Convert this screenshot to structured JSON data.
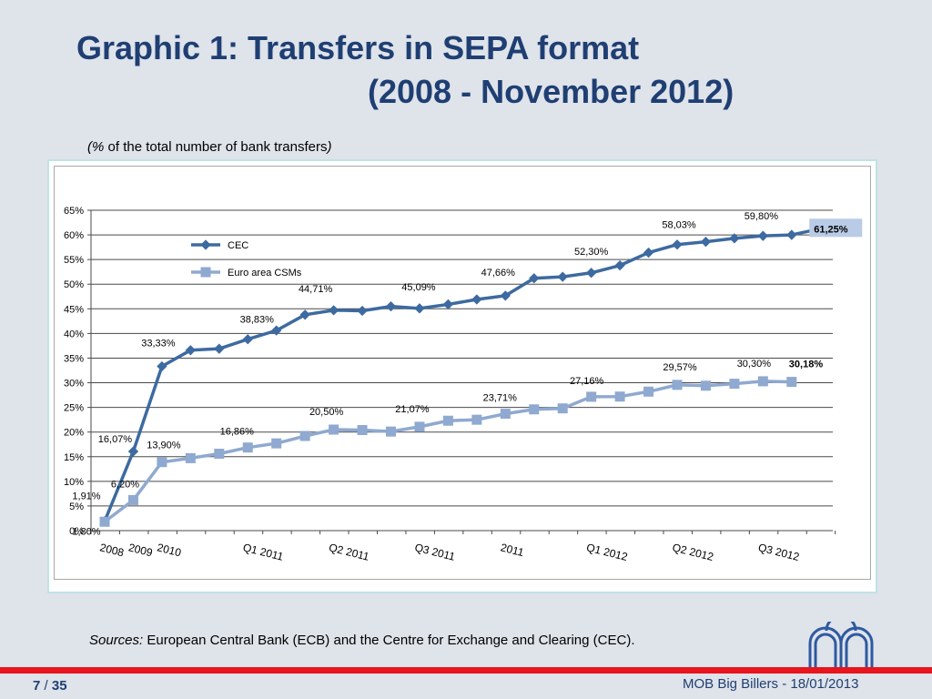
{
  "header": {
    "title_line1": "Graphic 1: Transfers in SEPA format",
    "title_line2": "(2008 - November 2012)",
    "subtitle_pre": "(%",
    "subtitle_mid": " of the total number of bank transfers",
    "subtitle_post": ")"
  },
  "footer": {
    "sources_label": "Sources:",
    "sources_text": " European Central Bank (ECB) and the Centre for Exchange and Clearing (CEC).",
    "page_current": "7",
    "page_sep": " / ",
    "page_total": "35",
    "right_text": "MOB Big Billers - 18/01/2013"
  },
  "colors": {
    "title": "#1f3f73",
    "cec_series": "#3d6aa0",
    "csm_series": "#8fa9d0",
    "red_bar": "#e8141e"
  },
  "chart_data": {
    "type": "line",
    "ylim": [
      0,
      65
    ],
    "yticks": [
      "0%",
      "5%",
      "10%",
      "15%",
      "20%",
      "25%",
      "30%",
      "35%",
      "40%",
      "45%",
      "50%",
      "55%",
      "60%",
      "65%"
    ],
    "grid": true,
    "legend_position": "top-left",
    "x_tick_labels": [
      {
        "index": 0,
        "label": "2008"
      },
      {
        "index": 1,
        "label": "2009"
      },
      {
        "index": 2,
        "label": "2010"
      },
      {
        "index": 5,
        "label": "Q1 2011"
      },
      {
        "index": 8,
        "label": "Q2 2011"
      },
      {
        "index": 11,
        "label": "Q3 2011"
      },
      {
        "index": 14,
        "label": "2011"
      },
      {
        "index": 17,
        "label": "Q1 2012"
      },
      {
        "index": 20,
        "label": "Q2 2012"
      },
      {
        "index": 23,
        "label": "Q3 2012"
      }
    ],
    "series": [
      {
        "name": "CEC",
        "values": [
          1.91,
          16.07,
          33.33,
          36.6,
          36.9,
          38.83,
          40.6,
          43.8,
          44.71,
          44.6,
          45.5,
          45.09,
          45.9,
          46.9,
          47.66,
          51.2,
          51.5,
          52.3,
          53.8,
          56.4,
          58.03,
          58.6,
          59.3,
          59.8,
          60.0,
          61.25
        ],
        "labels": [
          {
            "index": 0,
            "text": "1,91%"
          },
          {
            "index": 1,
            "text": "16,07%"
          },
          {
            "index": 2,
            "text": "33,33%"
          },
          {
            "index": 5,
            "text": "38,83%"
          },
          {
            "index": 8,
            "text": "44,71%"
          },
          {
            "index": 11,
            "text": "45,09%"
          },
          {
            "index": 14,
            "text": "47,66%"
          },
          {
            "index": 17,
            "text": "52,30%"
          },
          {
            "index": 20,
            "text": "58,03%"
          },
          {
            "index": 23,
            "text": "59,80%"
          },
          {
            "index": 25,
            "text": "61,25%"
          }
        ]
      },
      {
        "name": "Euro area CSMs",
        "values": [
          1.8,
          6.2,
          13.9,
          14.7,
          15.6,
          16.86,
          17.7,
          19.2,
          20.5,
          20.4,
          20.1,
          21.07,
          22.3,
          22.5,
          23.71,
          24.6,
          24.8,
          27.16,
          27.2,
          28.2,
          29.57,
          29.4,
          29.8,
          30.3,
          30.18
        ],
        "labels": [
          {
            "index": 0,
            "text": "1,80%"
          },
          {
            "index": 1,
            "text": "6,20%"
          },
          {
            "index": 2,
            "text": "13,90%"
          },
          {
            "index": 5,
            "text": "16,86%"
          },
          {
            "index": 8,
            "text": "20,50%"
          },
          {
            "index": 11,
            "text": "21,07%"
          },
          {
            "index": 14,
            "text": "23,71%"
          },
          {
            "index": 17,
            "text": "27,16%"
          },
          {
            "index": 20,
            "text": "29,57%"
          },
          {
            "index": 23,
            "text": "30,30%"
          },
          {
            "index": 24,
            "text": "30,18%"
          }
        ]
      }
    ]
  }
}
